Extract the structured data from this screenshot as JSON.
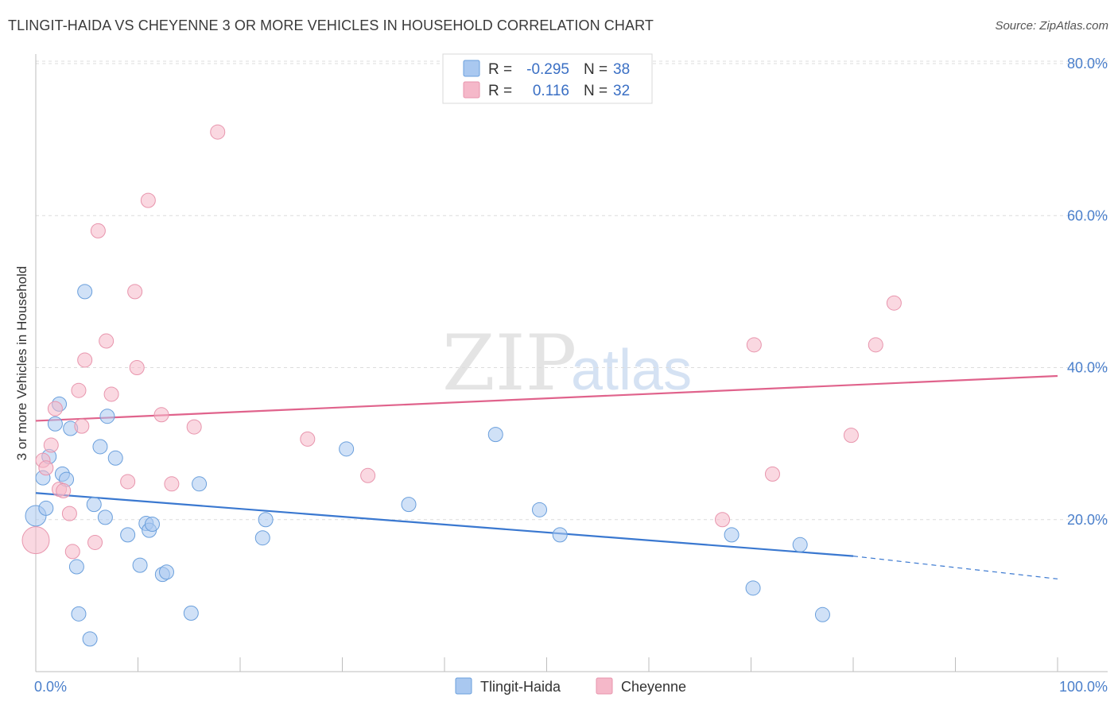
{
  "header": {
    "title": "TLINGIT-HAIDA VS CHEYENNE 3 OR MORE VEHICLES IN HOUSEHOLD CORRELATION CHART",
    "source": "Source: ZipAtlas.com"
  },
  "watermark": {
    "zip": "ZIP",
    "atlas": "atlas"
  },
  "legend_box": {
    "rows": [
      {
        "r_label": "R =",
        "r_value": "-0.295",
        "n_label": "N =",
        "n_value": "38",
        "color": "#a9c8f0"
      },
      {
        "r_label": "R =",
        "r_value": "0.116",
        "n_label": "N =",
        "n_value": "32",
        "color": "#f5b8c9"
      }
    ]
  },
  "chart_data": {
    "type": "scatter",
    "title": "TLINGIT-HAIDA VS CHEYENNE 3 OR MORE VEHICLES IN HOUSEHOLD CORRELATION CHART",
    "xlabel": "",
    "ylabel": "3 or more Vehicles in Household",
    "xlim": [
      0,
      100
    ],
    "ylim": [
      0,
      80
    ],
    "x_tick_labels": [
      "0.0%",
      "100.0%"
    ],
    "y_ticks": [
      20,
      40,
      60,
      80
    ],
    "y_tick_labels": [
      "20.0%",
      "40.0%",
      "60.0%",
      "80.0%"
    ],
    "grid": true,
    "legend_position": "bottom-center",
    "series": [
      {
        "name": "Tlingit-Haida",
        "color": "#a9c8f0",
        "stroke": "#6a9fdc",
        "line_color": "#3a78d0",
        "trend": {
          "x0": 0,
          "y0": 23.5,
          "x1": 80,
          "y1": 15.2,
          "dashed_to_x": 100,
          "dashed_to_y": 12.2
        },
        "points": [
          [
            0.0,
            20.5
          ],
          [
            0.7,
            25.5
          ],
          [
            1.0,
            21.5
          ],
          [
            1.3,
            28.3
          ],
          [
            1.9,
            32.6
          ],
          [
            2.3,
            35.2
          ],
          [
            2.6,
            26.0
          ],
          [
            3.0,
            25.3
          ],
          [
            3.4,
            32.0
          ],
          [
            4.0,
            13.8
          ],
          [
            4.2,
            7.6
          ],
          [
            4.8,
            50.0
          ],
          [
            5.3,
            4.3
          ],
          [
            5.7,
            22.0
          ],
          [
            6.3,
            29.6
          ],
          [
            6.8,
            20.3
          ],
          [
            7.0,
            33.6
          ],
          [
            7.8,
            28.1
          ],
          [
            9.0,
            18.0
          ],
          [
            10.2,
            14.0
          ],
          [
            10.8,
            19.5
          ],
          [
            11.1,
            18.6
          ],
          [
            11.4,
            19.4
          ],
          [
            12.4,
            12.8
          ],
          [
            12.8,
            13.1
          ],
          [
            15.2,
            7.7
          ],
          [
            16.0,
            24.7
          ],
          [
            22.2,
            17.6
          ],
          [
            22.5,
            20.0
          ],
          [
            30.4,
            29.3
          ],
          [
            36.5,
            22.0
          ],
          [
            45.0,
            31.2
          ],
          [
            49.3,
            21.3
          ],
          [
            51.3,
            18.0
          ],
          [
            68.1,
            18.0
          ],
          [
            70.2,
            11.0
          ],
          [
            74.8,
            16.7
          ],
          [
            77.0,
            7.5
          ]
        ],
        "radii": [
          13,
          9,
          9,
          9,
          9,
          9,
          9,
          9,
          9,
          9,
          9,
          9,
          9,
          9,
          9,
          9,
          9,
          9,
          9,
          9,
          9,
          9,
          9,
          9,
          9,
          9,
          9,
          9,
          9,
          9,
          9,
          9,
          9,
          9,
          9,
          9,
          9,
          9
        ]
      },
      {
        "name": "Cheyenne",
        "color": "#f5b8c9",
        "stroke": "#e895ad",
        "line_color": "#e0638c",
        "trend": {
          "x0": 0,
          "y0": 33.0,
          "x1": 100,
          "y1": 38.9
        },
        "points": [
          [
            0.0,
            17.3
          ],
          [
            0.7,
            27.8
          ],
          [
            1.0,
            26.8
          ],
          [
            1.5,
            29.8
          ],
          [
            1.9,
            34.6
          ],
          [
            2.3,
            24.0
          ],
          [
            2.7,
            23.8
          ],
          [
            3.3,
            20.8
          ],
          [
            3.6,
            15.8
          ],
          [
            4.2,
            37.0
          ],
          [
            4.5,
            32.3
          ],
          [
            4.8,
            41.0
          ],
          [
            5.8,
            17.0
          ],
          [
            6.1,
            58.0
          ],
          [
            6.9,
            43.5
          ],
          [
            7.4,
            36.5
          ],
          [
            9.0,
            25.0
          ],
          [
            9.7,
            50.0
          ],
          [
            9.9,
            40.0
          ],
          [
            11.0,
            62.0
          ],
          [
            12.3,
            33.8
          ],
          [
            13.3,
            24.7
          ],
          [
            15.5,
            32.2
          ],
          [
            17.8,
            71.0
          ],
          [
            26.6,
            30.6
          ],
          [
            32.5,
            25.8
          ],
          [
            67.2,
            20.0
          ],
          [
            70.3,
            43.0
          ],
          [
            72.1,
            26.0
          ],
          [
            79.8,
            31.1
          ],
          [
            82.2,
            43.0
          ],
          [
            84.0,
            48.5
          ]
        ],
        "radii": [
          17,
          9,
          9,
          9,
          9,
          9,
          9,
          9,
          9,
          9,
          9,
          9,
          9,
          9,
          9,
          9,
          9,
          9,
          9,
          9,
          9,
          9,
          9,
          9,
          9,
          9,
          9,
          9,
          9,
          9,
          9,
          9
        ]
      }
    ]
  }
}
